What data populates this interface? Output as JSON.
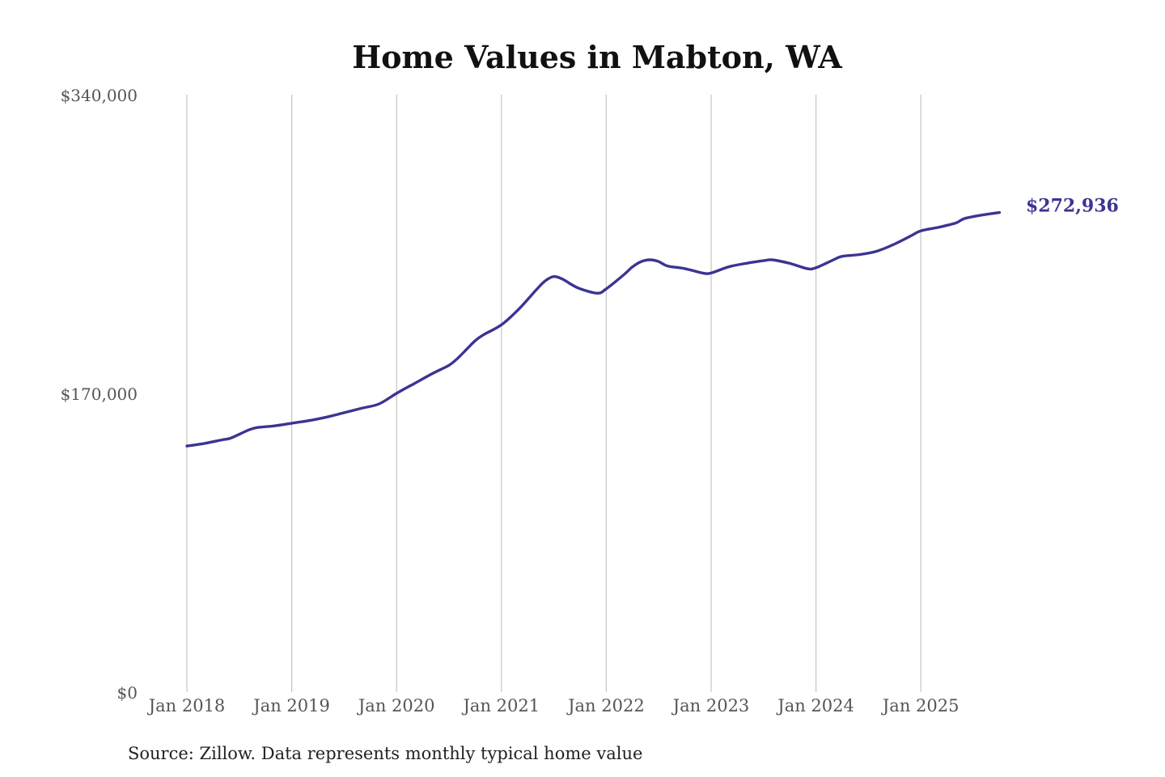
{
  "chart_data": {
    "type": "line",
    "title": "Home Values in Mabton, WA",
    "source": "Source: Zillow. Data represents monthly typical home value",
    "ylim": [
      0,
      340000
    ],
    "y_ticks": [
      {
        "value": 0,
        "label": "$0"
      },
      {
        "value": 170000,
        "label": "$170,000"
      },
      {
        "value": 340000,
        "label": "$340,000"
      }
    ],
    "x_ticks": [
      {
        "value": "2018-01",
        "label": "Jan 2018"
      },
      {
        "value": "2019-01",
        "label": "Jan 2019"
      },
      {
        "value": "2020-01",
        "label": "Jan 2020"
      },
      {
        "value": "2021-01",
        "label": "Jan 2021"
      },
      {
        "value": "2022-01",
        "label": "Jan 2022"
      },
      {
        "value": "2023-01",
        "label": "Jan 2023"
      },
      {
        "value": "2024-01",
        "label": "Jan 2024"
      },
      {
        "value": "2025-01",
        "label": "Jan 2025"
      }
    ],
    "x_range": [
      "2018-01",
      "2025-12"
    ],
    "grid": "vertical",
    "line_color": "#3b3493",
    "last_value_label": "$272,936",
    "series": [
      {
        "points": [
          [
            "2018-01",
            140000
          ],
          [
            "2018-03",
            141500
          ],
          [
            "2018-05",
            143500
          ],
          [
            "2018-06",
            144500
          ],
          [
            "2018-08",
            149000
          ],
          [
            "2018-09",
            150500
          ],
          [
            "2018-11",
            151500
          ],
          [
            "2019-01",
            153000
          ],
          [
            "2019-03",
            154500
          ],
          [
            "2019-05",
            156500
          ],
          [
            "2019-07",
            159000
          ],
          [
            "2019-09",
            161500
          ],
          [
            "2019-11",
            164000
          ],
          [
            "2020-01",
            170000
          ],
          [
            "2020-03",
            175500
          ],
          [
            "2020-05",
            181000
          ],
          [
            "2020-07",
            186000
          ],
          [
            "2020-08",
            190000
          ],
          [
            "2020-09",
            195000
          ],
          [
            "2020-10",
            200000
          ],
          [
            "2020-11",
            203500
          ],
          [
            "2021-01",
            209000
          ],
          [
            "2021-03",
            218000
          ],
          [
            "2021-05",
            229000
          ],
          [
            "2021-06",
            234000
          ],
          [
            "2021-07",
            236500
          ],
          [
            "2021-08",
            235000
          ],
          [
            "2021-09",
            232000
          ],
          [
            "2021-10",
            229500
          ],
          [
            "2021-12",
            227000
          ],
          [
            "2022-01",
            229500
          ],
          [
            "2022-03",
            237500
          ],
          [
            "2022-04",
            242000
          ],
          [
            "2022-05",
            245000
          ],
          [
            "2022-06",
            246000
          ],
          [
            "2022-07",
            245000
          ],
          [
            "2022-08",
            242500
          ],
          [
            "2022-10",
            241000
          ],
          [
            "2022-12",
            238500
          ],
          [
            "2023-01",
            238500
          ],
          [
            "2023-03",
            242000
          ],
          [
            "2023-05",
            244000
          ],
          [
            "2023-07",
            245500
          ],
          [
            "2023-08",
            246000
          ],
          [
            "2023-10",
            244000
          ],
          [
            "2023-12",
            241000
          ],
          [
            "2024-01",
            241500
          ],
          [
            "2024-03",
            246000
          ],
          [
            "2024-04",
            248000
          ],
          [
            "2024-06",
            249000
          ],
          [
            "2024-08",
            251000
          ],
          [
            "2024-10",
            255000
          ],
          [
            "2024-12",
            260000
          ],
          [
            "2025-01",
            262500
          ],
          [
            "2025-03",
            264500
          ],
          [
            "2025-05",
            267000
          ],
          [
            "2025-06",
            269500
          ],
          [
            "2025-08",
            271500
          ],
          [
            "2025-10",
            272936
          ]
        ]
      }
    ]
  }
}
